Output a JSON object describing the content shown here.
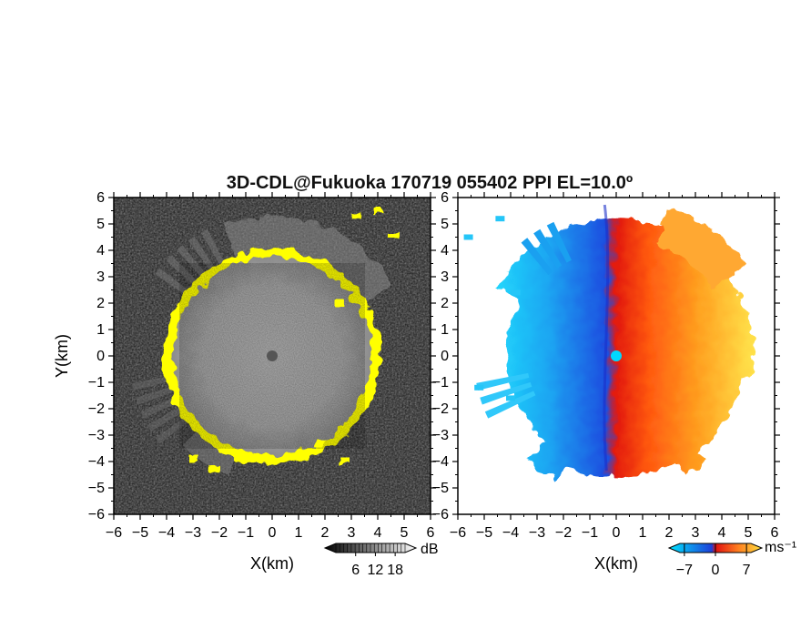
{
  "chart_data": [
    {
      "type": "heatmap",
      "panel": "left",
      "title": "3D-CDL@Fukuoka 170719 055402 PPI EL=10.0º",
      "xlabel": "X(km)",
      "ylabel": "Y(km)",
      "xlim": [
        -6,
        6
      ],
      "ylim": [
        -6,
        6
      ],
      "xticks": [
        -6,
        -5,
        -4,
        -3,
        -2,
        -1,
        0,
        1,
        2,
        3,
        4,
        5,
        6
      ],
      "yticks": [
        -6,
        -5,
        -4,
        -3,
        -2,
        -1,
        0,
        1,
        2,
        3,
        4,
        5,
        6
      ],
      "grid": false,
      "colormap": {
        "low": "#000000",
        "high": "#ffffff",
        "overflow": "#ffff00"
      },
      "colorbar": {
        "unit": "dB",
        "ticks": [
          6,
          12,
          18
        ]
      },
      "features": {
        "bright_echo_radius_km": 3.9,
        "yellow_ring_radius_km": 4.1,
        "center_marker": [
          0,
          0
        ]
      }
    },
    {
      "type": "heatmap",
      "panel": "right",
      "xlabel": "X(km)",
      "xlim": [
        -6,
        6
      ],
      "ylim": [
        -6,
        6
      ],
      "xticks": [
        -6,
        -5,
        -4,
        -3,
        -2,
        -1,
        0,
        1,
        2,
        3,
        4,
        5,
        6
      ],
      "yticks": [
        -6,
        -5,
        -4,
        -3,
        -2,
        -1,
        0,
        1,
        2,
        3,
        4,
        5,
        6
      ],
      "grid": false,
      "colormap": {
        "negative": [
          "#00e5ff",
          "#1a8fef",
          "#1f3fd8"
        ],
        "positive": [
          "#e01010",
          "#ff6a10",
          "#ffe040"
        ]
      },
      "colorbar": {
        "unit": "ms⁻¹",
        "ticks": [
          -7,
          0,
          7
        ]
      },
      "features": {
        "zero_velocity_line_x_km": -0.3,
        "center_marker": [
          0,
          0
        ]
      }
    }
  ],
  "colors": {
    "overflow_yellow": "#ffff00",
    "center_marker_left": "#555555",
    "center_marker_right": "#00d8ff"
  }
}
